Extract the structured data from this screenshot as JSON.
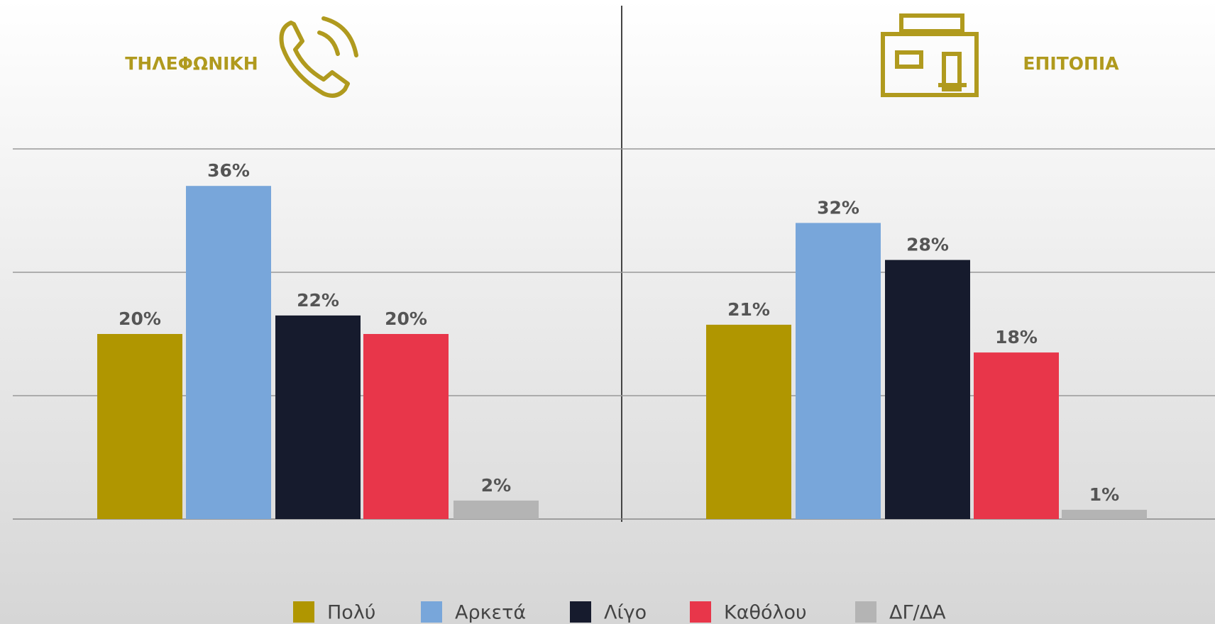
{
  "chart_data": [
    {
      "type": "bar",
      "title": "ΤΗΛΕΦΩΝΙΚΗ",
      "categories": [
        "Πολύ",
        "Αρκετά",
        "Λίγο",
        "Καθόλου",
        "ΔΓ/ΔΑ"
      ],
      "values": [
        20,
        36,
        22,
        20,
        2
      ],
      "value_labels": [
        "20%",
        "36%",
        "22%",
        "20%",
        "2%"
      ],
      "colors": [
        "#b09600",
        "#78a6da",
        "#161b2d",
        "#e8364a",
        "#b4b4b4"
      ],
      "ylim": [
        0,
        40
      ],
      "grid_lines": [
        0,
        13.33,
        26.67,
        40
      ]
    },
    {
      "type": "bar",
      "title": "ΕΠΙΤΟΠΙΑ",
      "categories": [
        "Πολύ",
        "Αρκετά",
        "Λίγο",
        "Καθόλου",
        "ΔΓ/ΔΑ"
      ],
      "values": [
        21,
        32,
        28,
        18,
        1
      ],
      "value_labels": [
        "21%",
        "32%",
        "28%",
        "18%",
        "1%"
      ],
      "colors": [
        "#b09600",
        "#78a6da",
        "#161b2d",
        "#e8364a",
        "#b4b4b4"
      ],
      "ylim": [
        0,
        40
      ],
      "grid_lines": [
        0,
        13.33,
        26.67,
        40
      ]
    }
  ]
}
